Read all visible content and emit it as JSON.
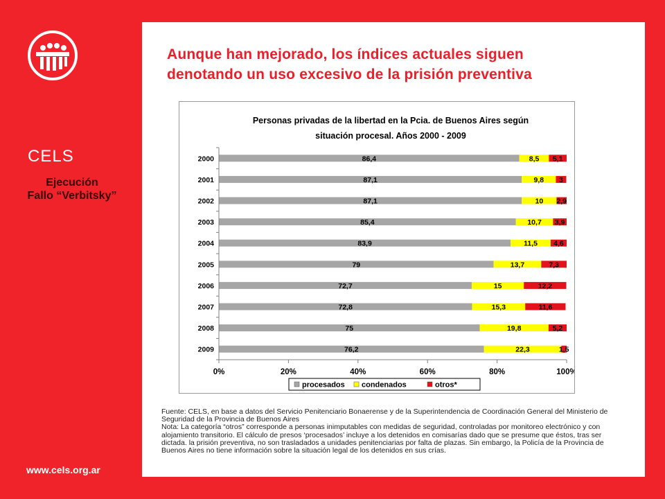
{
  "sidebar": {
    "brand": "CELS",
    "subtitle_line1": "Ejecución",
    "subtitle_line2": "Fallo “Verbitsky”",
    "website": "www.cels.org.ar"
  },
  "headline": {
    "line1": "Aunque han mejorado, los índices actuales siguen",
    "line2": "denotando un uso excesivo de la prisión preventiva"
  },
  "colors": {
    "background": "#f0232b",
    "headline": "#e8202a",
    "procesados": "#a6a6a6",
    "condenados": "#ffff00",
    "otros": "#e3131c"
  },
  "chart_data": {
    "type": "bar",
    "orientation": "horizontal-stacked-100",
    "title_line1": "Personas privadas de la libertad en la Pcia. de Buenos Aires según",
    "title_line2": "situación procesal. Años 2000 - 2009",
    "categories": [
      "2000",
      "2001",
      "2002",
      "2003",
      "2004",
      "2005",
      "2006",
      "2007",
      "2008",
      "2009"
    ],
    "series": [
      {
        "name": "procesados",
        "values": [
          86.4,
          87.1,
          87.1,
          85.4,
          83.9,
          79,
          72.7,
          72.8,
          75,
          76.2
        ],
        "labels": [
          "86,4",
          "87,1",
          "87,1",
          "85,4",
          "83,9",
          "79",
          "72,7",
          "72,8",
          "75",
          "76,2"
        ]
      },
      {
        "name": "condenados",
        "values": [
          8.5,
          9.8,
          10,
          10.7,
          11.5,
          13.7,
          15,
          15.3,
          19.8,
          22.3
        ],
        "labels": [
          "8,5",
          "9,8",
          "10",
          "10,7",
          "11,5",
          "13,7",
          "15",
          "15,3",
          "19,8",
          "22,3"
        ]
      },
      {
        "name": "otros",
        "values": [
          5.1,
          3,
          2.9,
          3.9,
          4.6,
          7.3,
          12.2,
          11.6,
          5.2,
          1.5
        ],
        "labels": [
          "5,1",
          "3",
          "2,9",
          "3,9",
          "4,6",
          "7,3",
          "12,2",
          "11,6",
          "5,2",
          "1,5"
        ]
      }
    ],
    "legend": [
      "procesados",
      "condenados",
      "otros*"
    ],
    "legend_position": "bottom",
    "xticks": [
      "0%",
      "20%",
      "40%",
      "60%",
      "80%",
      "100%"
    ],
    "xlim": [
      0,
      100
    ],
    "xlabel": "",
    "ylabel": ""
  },
  "notes": {
    "source": "Fuente: CELS, en base a datos del Servicio Penitenciario Bonaerense y de la Superintendencia de Coordinación General del Ministerio de Seguridad de la Provincia de Buenos Aires",
    "note": "Nota: La categoría “otros” corresponde a personas inimputables con medidas de seguridad, controladas por monitoreo electrónico y con alojamiento transitorio. El cálculo de presos ‘procesados’ incluye a los detenidos en comisarías dado que se presume que éstos, tras ser dictada. la prisión preventiva, no son trasladados a unidades penitenciarias por falta de plazas. Sin embargo, la Policía de la Provincia de Buenos Aires no tiene información sobre la situación legal de los detenidos en sus crías."
  }
}
